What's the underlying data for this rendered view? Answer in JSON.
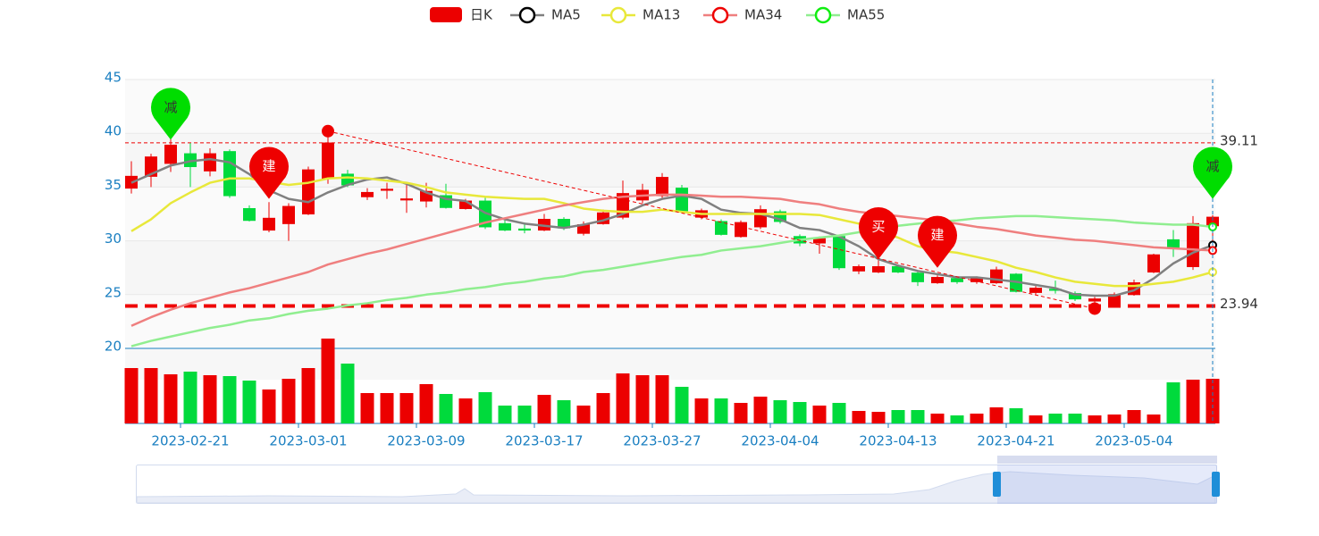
{
  "chart_data": {
    "type": "candlestick",
    "legend": "top",
    "grid": true,
    "ylim": [
      20,
      45
    ],
    "yticks": [
      20,
      25,
      30,
      35,
      40,
      45
    ],
    "categories": [
      null,
      null,
      null,
      "2023-02-21",
      null,
      null,
      null,
      null,
      null,
      "2023-03-01",
      null,
      null,
      null,
      null,
      null,
      "2023-03-09",
      null,
      null,
      null,
      null,
      null,
      "2023-03-17",
      null,
      null,
      null,
      null,
      null,
      "2023-03-27",
      null,
      null,
      null,
      null,
      null,
      "2023-04-04",
      null,
      null,
      null,
      null,
      null,
      "2023-04-13",
      null,
      null,
      null,
      null,
      null,
      "2023-04-21",
      null,
      null,
      null,
      null,
      null,
      "2023-05-04",
      null,
      null,
      null,
      null
    ],
    "series": [
      {
        "name": "日K",
        "type": "candlestick",
        "color_up": "#ec0000",
        "color_down": "#00da3c",
        "open": [
          34.9,
          36.0,
          37.2,
          38.1,
          36.5,
          38.3,
          33.0,
          31.0,
          31.6,
          32.5,
          35.8,
          36.2,
          34.1,
          34.7,
          33.8,
          33.7,
          34.2,
          33.0,
          33.7,
          31.6,
          31.1,
          31.0,
          32.0,
          30.7,
          31.6,
          32.2,
          33.8,
          34.2,
          34.9,
          32.2,
          31.8,
          30.4,
          31.3,
          32.7,
          30.4,
          29.8,
          30.4,
          27.2,
          27.1,
          27.6,
          27.0,
          26.1,
          26.5,
          26.2,
          26.1,
          26.9,
          25.2,
          25.5,
          25.1,
          24.4,
          23.9,
          25.0,
          27.1,
          30.1,
          27.6,
          31.4
        ],
        "close": [
          36.0,
          37.8,
          38.9,
          36.9,
          38.1,
          34.2,
          31.9,
          32.1,
          33.2,
          36.6,
          39.1,
          35.2,
          34.5,
          34.8,
          33.9,
          34.6,
          33.1,
          33.7,
          31.3,
          31.0,
          31.0,
          32.0,
          31.2,
          31.5,
          32.6,
          34.4,
          34.7,
          35.9,
          32.8,
          32.8,
          30.6,
          31.7,
          32.9,
          31.8,
          29.8,
          30.2,
          27.5,
          27.6,
          27.6,
          27.1,
          26.2,
          26.6,
          26.2,
          26.5,
          27.3,
          25.3,
          25.6,
          25.4,
          24.6,
          24.6,
          25.0,
          26.1,
          28.7,
          29.4,
          31.6,
          32.2
        ],
        "high": [
          37.4,
          38.1,
          39.5,
          39.1,
          38.6,
          38.5,
          33.3,
          33.6,
          33.5,
          36.9,
          40.2,
          36.6,
          34.9,
          35.4,
          35.2,
          35.4,
          35.3,
          33.9,
          34.0,
          32.0,
          31.7,
          32.5,
          32.2,
          31.8,
          32.9,
          35.6,
          35.3,
          36.3,
          35.2,
          33.0,
          32.0,
          31.9,
          33.3,
          32.9,
          30.6,
          30.4,
          30.5,
          27.8,
          28.2,
          27.8,
          27.2,
          26.8,
          26.6,
          26.7,
          27.6,
          27.0,
          25.8,
          26.3,
          25.3,
          24.8,
          25.2,
          26.4,
          28.8,
          31.0,
          32.3,
          32.4
        ],
        "low": [
          34.4,
          35.0,
          36.4,
          35.0,
          36.0,
          34.0,
          31.8,
          30.8,
          30.0,
          32.4,
          35.3,
          35.0,
          33.8,
          33.9,
          32.6,
          33.1,
          33.0,
          32.9,
          31.1,
          30.9,
          30.7,
          30.9,
          31.0,
          30.5,
          31.5,
          32.0,
          33.5,
          34.0,
          32.6,
          32.0,
          30.5,
          30.3,
          31.1,
          31.6,
          29.5,
          28.8,
          27.3,
          26.9,
          27.0,
          27.0,
          25.8,
          26.0,
          26.0,
          26.0,
          26.0,
          25.2,
          25.0,
          25.1,
          24.4,
          23.7,
          23.8,
          24.9,
          27.0,
          28.5,
          27.3,
          29.0
        ]
      },
      {
        "name": "MA5",
        "type": "line",
        "color": "#808080",
        "marker_color": "#000000",
        "values": [
          35.4,
          36.2,
          37.0,
          37.4,
          37.6,
          37.3,
          36.2,
          34.7,
          33.9,
          33.6,
          34.5,
          35.2,
          35.7,
          35.9,
          35.3,
          34.5,
          33.9,
          33.7,
          32.6,
          32.0,
          31.6,
          31.4,
          31.2,
          31.5,
          31.9,
          32.5,
          33.3,
          33.9,
          34.2,
          33.9,
          32.9,
          32.6,
          32.5,
          32.0,
          31.2,
          31.0,
          30.4,
          29.5,
          28.3,
          27.7,
          27.2,
          26.9,
          26.6,
          26.6,
          26.4,
          26.2,
          25.9,
          25.6,
          25.0,
          24.9,
          24.9,
          25.4,
          26.5,
          27.9,
          28.9,
          29.6
        ]
      },
      {
        "name": "MA13",
        "type": "line",
        "color": "#e8e83a",
        "marker_color": "#e8e83a",
        "values": [
          30.9,
          32.0,
          33.5,
          34.5,
          35.4,
          35.8,
          35.8,
          35.5,
          35.2,
          35.4,
          35.8,
          35.9,
          35.8,
          35.6,
          35.4,
          35.0,
          34.5,
          34.3,
          34.1,
          34.0,
          33.9,
          33.9,
          33.5,
          33.0,
          32.8,
          32.7,
          32.7,
          32.9,
          32.7,
          32.5,
          32.5,
          32.5,
          32.5,
          32.5,
          32.5,
          32.4,
          32.0,
          31.6,
          30.9,
          30.3,
          29.5,
          29.1,
          28.9,
          28.5,
          28.1,
          27.5,
          27.1,
          26.6,
          26.2,
          26.0,
          25.8,
          25.8,
          26.0,
          26.2,
          26.6,
          27.1
        ]
      },
      {
        "name": "MA34",
        "type": "line",
        "color": "#ef7f7f",
        "marker_color": "#ee0000",
        "values": [
          22.1,
          22.9,
          23.6,
          24.2,
          24.7,
          25.2,
          25.6,
          26.1,
          26.6,
          27.1,
          27.8,
          28.3,
          28.8,
          29.2,
          29.7,
          30.2,
          30.7,
          31.2,
          31.7,
          32.1,
          32.5,
          32.9,
          33.3,
          33.6,
          33.9,
          34.1,
          34.2,
          34.3,
          34.3,
          34.2,
          34.1,
          34.1,
          34.0,
          33.9,
          33.6,
          33.4,
          33.0,
          32.7,
          32.5,
          32.3,
          32.1,
          31.9,
          31.6,
          31.3,
          31.1,
          30.8,
          30.5,
          30.3,
          30.1,
          30.0,
          29.8,
          29.6,
          29.4,
          29.3,
          29.2,
          29.1
        ]
      },
      {
        "name": "MA55",
        "type": "line",
        "color": "#90ee90",
        "marker_color": "#11ee11",
        "values": [
          20.2,
          20.7,
          21.1,
          21.5,
          21.9,
          22.2,
          22.6,
          22.8,
          23.2,
          23.5,
          23.7,
          24.0,
          24.2,
          24.5,
          24.7,
          25.0,
          25.2,
          25.5,
          25.7,
          26.0,
          26.2,
          26.5,
          26.7,
          27.1,
          27.3,
          27.6,
          27.9,
          28.2,
          28.5,
          28.7,
          29.1,
          29.3,
          29.5,
          29.8,
          30.1,
          30.3,
          30.5,
          30.8,
          31.0,
          31.4,
          31.6,
          31.8,
          31.9,
          32.1,
          32.2,
          32.3,
          32.3,
          32.2,
          32.1,
          32.0,
          31.9,
          31.7,
          31.6,
          31.5,
          31.5,
          31.3
        ]
      }
    ],
    "volume": {
      "ylim": [
        0,
        95
      ],
      "values": [
        62,
        62,
        55,
        58,
        54,
        53,
        48,
        38,
        50,
        62,
        95,
        67,
        34,
        34,
        34,
        44,
        33,
        28,
        35,
        20,
        20,
        32,
        26,
        20,
        34,
        56,
        54,
        54,
        41,
        28,
        28,
        23,
        30,
        26,
        24,
        20,
        23,
        14,
        13,
        15,
        15,
        11,
        9,
        11,
        18,
        17,
        9,
        11,
        11,
        9,
        10,
        15,
        10,
        46,
        49,
        50
      ]
    },
    "mark_lines": [
      39.11,
      23.94
    ],
    "trend_line": {
      "start": {
        "index": 10,
        "value": 40.2
      },
      "end": {
        "index": 49,
        "value": 23.7
      }
    },
    "markers": [
      {
        "index": 2,
        "value": 39.4,
        "label": "减",
        "color": "#00dd00",
        "label_color": "#333333"
      },
      {
        "index": 7,
        "value": 33.9,
        "label": "建",
        "color": "#ee0000",
        "label_color": "#ffffff"
      },
      {
        "index": 38,
        "value": 28.3,
        "label": "买",
        "color": "#ee0000",
        "label_color": "#ffffff"
      },
      {
        "index": 41,
        "value": 27.5,
        "label": "建",
        "color": "#ee0000",
        "label_color": "#ffffff"
      },
      {
        "index": 55,
        "value": 33.9,
        "label": "减",
        "color": "#00dd00",
        "label_color": "#333333"
      }
    ]
  }
}
